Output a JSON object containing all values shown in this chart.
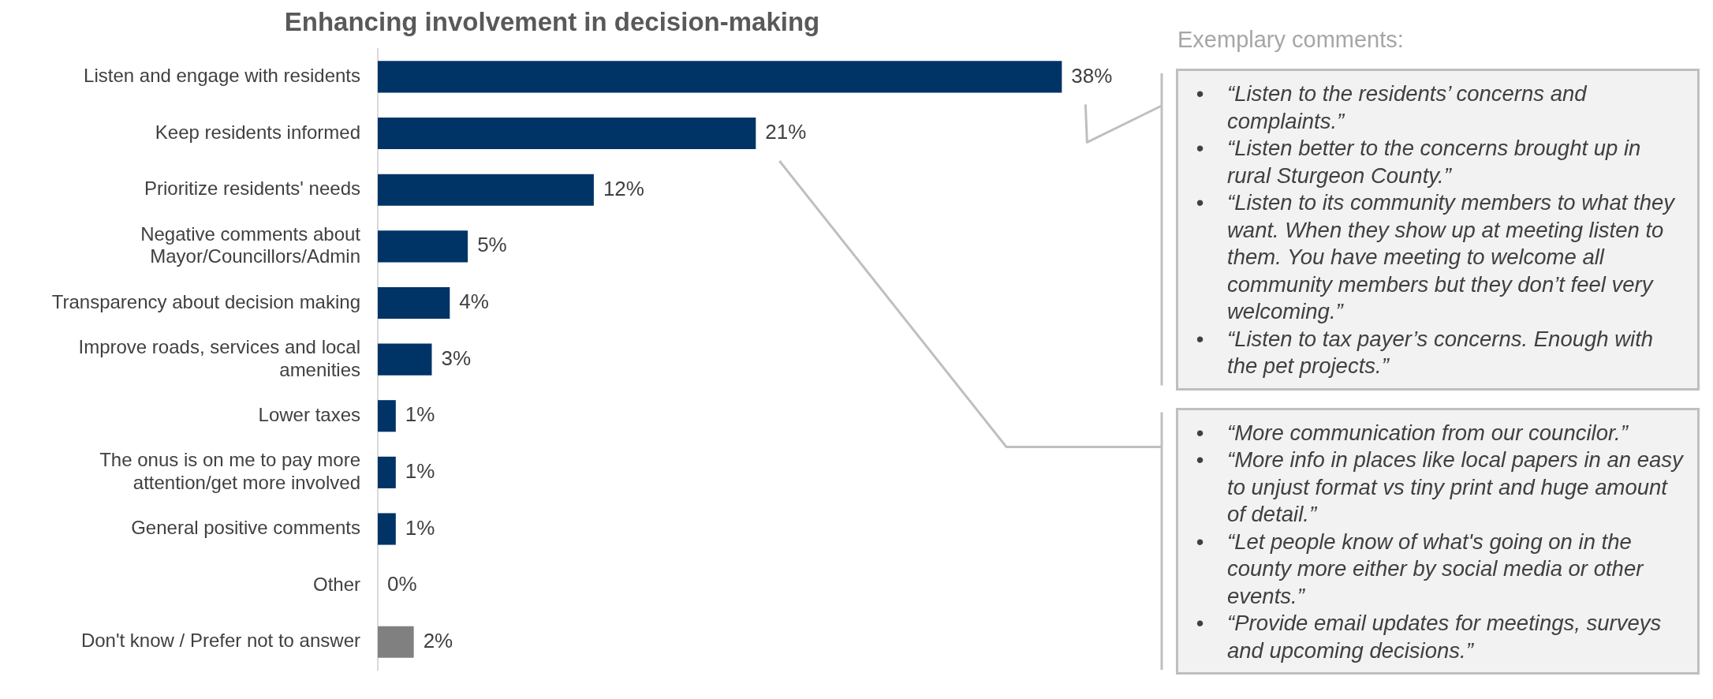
{
  "chart_data": {
    "type": "bar",
    "orientation": "horizontal",
    "title": "Enhancing involvement in decision-making",
    "categories": [
      "Listen and engage with residents",
      "Keep residents informed",
      "Prioritize residents' needs",
      "Negative comments about Mayor/Councillors/Admin",
      "Transparency about decision making",
      "Improve roads, services and local amenities",
      "Lower taxes",
      "The onus is on me to pay more attention/get more involved",
      "General positive comments",
      "Other",
      "Don't know / Prefer not to answer"
    ],
    "values": [
      38,
      21,
      12,
      5,
      4,
      3,
      1,
      1,
      1,
      0,
      2
    ],
    "colors": [
      "#003366",
      "#003366",
      "#003366",
      "#003366",
      "#003366",
      "#003366",
      "#003366",
      "#003366",
      "#003366",
      "#003366",
      "#808080"
    ],
    "value_labels": [
      "38%",
      "21%",
      "12%",
      "5%",
      "4%",
      "3%",
      "1%",
      "1%",
      "1%",
      "0%",
      "2%"
    ],
    "legend": false,
    "annotations": [
      "Exemplary comments:",
      "• “Listen to the residents’ concerns and complaints.”",
      "• “Listen better to the concerns brought up in rural Sturgeon County.”",
      "• “Listen to its community members to what they want. When they show up at meeting listen to them. You have meeting to welcome all community members but they don’t feel very welcoming.”",
      "• “Listen to tax payer’s concerns. Enough with the pet projects.”",
      "• “More communication from our councilor.”",
      "• “More info in places like local papers in an easy to unjust format vs tiny print and huge amount of detail.”",
      "• “Let people know of what's going on in the county more either by social media or other events.”",
      "• “Provide email updates for meetings, surveys and upcoming decisions.”"
    ]
  }
}
